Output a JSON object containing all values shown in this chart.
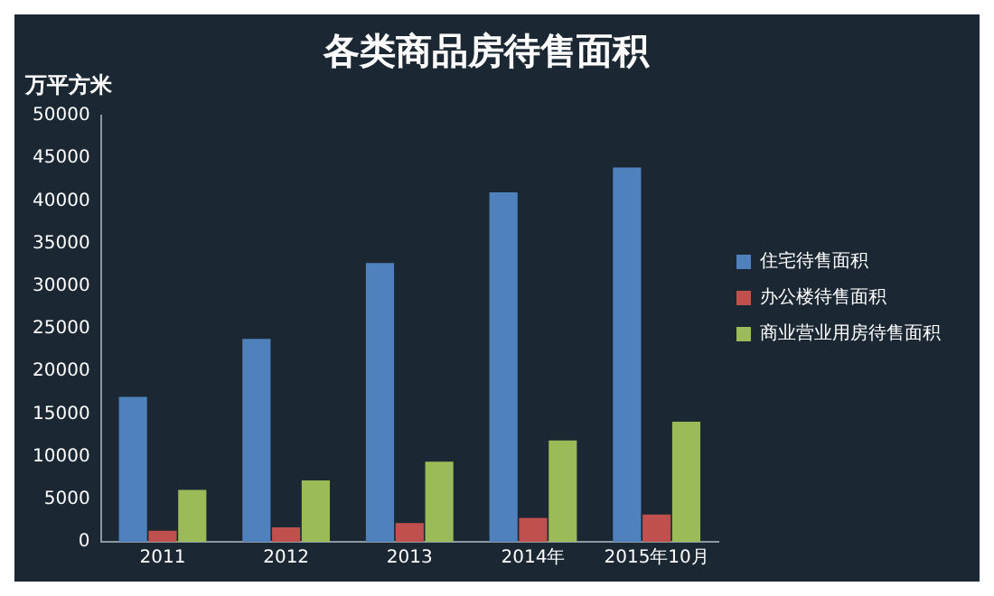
{
  "chart_data": {
    "type": "bar",
    "title": "各类商品房待售面积",
    "ylabel": "万平方米",
    "categories": [
      "2011",
      "2012",
      "2013",
      "2014年",
      "2015年10月"
    ],
    "series": [
      {
        "name": "住宅待售面积",
        "color": "#4f81bd",
        "values": [
          17000,
          23800,
          32700,
          41000,
          43900
        ]
      },
      {
        "name": "办公楼待售面积",
        "color": "#c0504d",
        "values": [
          1300,
          1700,
          2200,
          2800,
          3200
        ]
      },
      {
        "name": "商业营业用房待售面积",
        "color": "#9bbb59",
        "values": [
          6100,
          7200,
          9400,
          11900,
          14100
        ]
      }
    ],
    "ylim": [
      0,
      50000
    ],
    "yticks": [
      0,
      5000,
      10000,
      15000,
      20000,
      25000,
      30000,
      35000,
      40000,
      45000,
      50000
    ],
    "grid": false,
    "legend": "right"
  }
}
